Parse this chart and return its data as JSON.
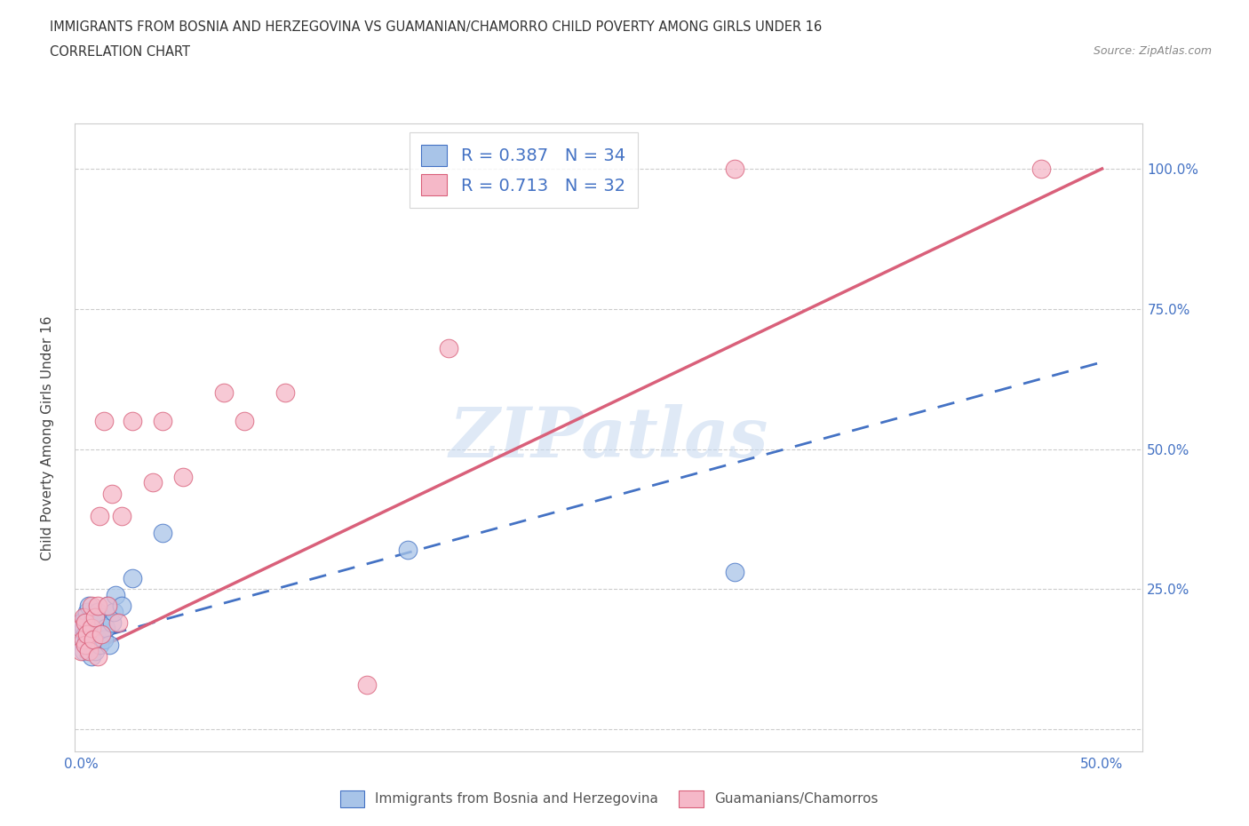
{
  "title_line1": "IMMIGRANTS FROM BOSNIA AND HERZEGOVINA VS GUAMANIAN/CHAMORRO CHILD POVERTY AMONG GIRLS UNDER 16",
  "title_line2": "CORRELATION CHART",
  "source": "Source: ZipAtlas.com",
  "ylabel": "Child Poverty Among Girls Under 16",
  "xlim": [
    -0.003,
    0.52
  ],
  "ylim": [
    -0.04,
    1.08
  ],
  "xticks": [
    0.0,
    0.1,
    0.2,
    0.3,
    0.4,
    0.5
  ],
  "xticklabels": [
    "0.0%",
    "",
    "",
    "",
    "",
    "50.0%"
  ],
  "yticks": [
    0.0,
    0.25,
    0.5,
    0.75,
    1.0
  ],
  "yticklabels_right": [
    "",
    "25.0%",
    "50.0%",
    "75.0%",
    "100.0%"
  ],
  "watermark": "ZIPatlas",
  "legend_r1": "R = 0.387",
  "legend_n1": "N = 34",
  "legend_r2": "R = 0.713",
  "legend_n2": "N = 32",
  "color_blue": "#a8c4e8",
  "color_pink": "#f5b8c8",
  "color_blue_dark": "#4472c4",
  "color_pink_dark": "#d9607a",
  "gridline_color": "#cccccc",
  "blue_scatter_x": [
    0.0,
    0.0,
    0.001,
    0.001,
    0.002,
    0.002,
    0.003,
    0.003,
    0.004,
    0.004,
    0.005,
    0.005,
    0.006,
    0.006,
    0.007,
    0.007,
    0.008,
    0.008,
    0.009,
    0.009,
    0.01,
    0.01,
    0.011,
    0.012,
    0.013,
    0.014,
    0.015,
    0.016,
    0.017,
    0.02,
    0.025,
    0.04,
    0.16,
    0.32
  ],
  "blue_scatter_y": [
    0.16,
    0.19,
    0.14,
    0.18,
    0.17,
    0.2,
    0.15,
    0.21,
    0.16,
    0.22,
    0.13,
    0.19,
    0.17,
    0.2,
    0.14,
    0.18,
    0.16,
    0.21,
    0.15,
    0.19,
    0.17,
    0.2,
    0.16,
    0.18,
    0.22,
    0.15,
    0.19,
    0.21,
    0.24,
    0.22,
    0.27,
    0.35,
    0.32,
    0.28
  ],
  "pink_scatter_x": [
    0.0,
    0.0,
    0.001,
    0.001,
    0.002,
    0.002,
    0.003,
    0.004,
    0.005,
    0.005,
    0.006,
    0.007,
    0.008,
    0.008,
    0.009,
    0.01,
    0.011,
    0.013,
    0.015,
    0.018,
    0.02,
    0.025,
    0.035,
    0.04,
    0.05,
    0.07,
    0.08,
    0.1,
    0.14,
    0.18,
    0.32,
    0.47
  ],
  "pink_scatter_y": [
    0.14,
    0.18,
    0.16,
    0.2,
    0.15,
    0.19,
    0.17,
    0.14,
    0.22,
    0.18,
    0.16,
    0.2,
    0.13,
    0.22,
    0.38,
    0.17,
    0.55,
    0.22,
    0.42,
    0.19,
    0.38,
    0.55,
    0.44,
    0.55,
    0.45,
    0.6,
    0.55,
    0.6,
    0.08,
    0.68,
    1.0,
    1.0
  ],
  "blue_trendline_x": [
    0.0,
    0.5
  ],
  "blue_trendline_y": [
    0.155,
    0.655
  ],
  "pink_trendline_x": [
    0.0,
    0.5
  ],
  "pink_trendline_y": [
    0.13,
    1.0
  ]
}
